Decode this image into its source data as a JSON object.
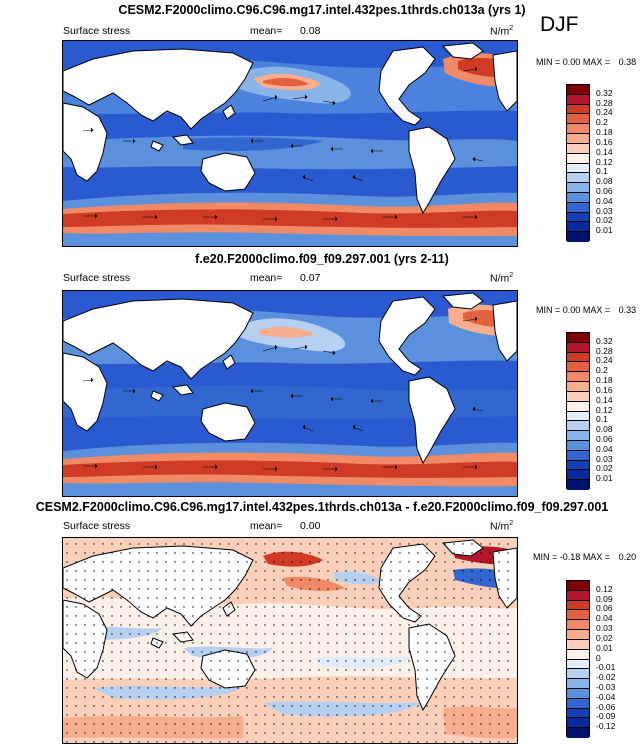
{
  "season": "DJF",
  "panels": [
    {
      "title": "CESM2.F2000climo.C96.C96.mg17.intel.432pes.1thrds.ch013a (yrs 1)",
      "left_label": "Surface stress",
      "mean_label": "mean=",
      "mean_value": "0.08",
      "units": "N/m",
      "units_exp": "2",
      "min_label": "MIN =",
      "min_value": "0.00",
      "max_label": "MAX =",
      "max_value": "0.38"
    },
    {
      "title": "f.e20.F2000climo.f09_f09.297.001 (yrs 2-11)",
      "left_label": "Surface stress",
      "mean_label": "mean=",
      "mean_value": "0.07",
      "units": "N/m",
      "units_exp": "2",
      "min_label": "MIN =",
      "min_value": "0.00",
      "max_label": "MAX =",
      "max_value": "0.33"
    },
    {
      "title": "CESM2.F2000climo.C96.C96.mg17.intel.432pes.1thrds.ch013a - f.e20.F2000climo.f09_f09.297.001",
      "left_label": "Surface stress",
      "mean_label": "mean=",
      "mean_value": "0.00",
      "units": "N/m",
      "units_exp": "2",
      "min_label": "MIN =",
      "min_value": "-0.18",
      "max_label": "MAX =",
      "max_value": "0.20"
    }
  ],
  "colorbars": {
    "abs": {
      "labels": [
        "0.32",
        "0.28",
        "0.24",
        "0.2",
        "0.18",
        "0.16",
        "0.14",
        "0.12",
        "0.1",
        "0.08",
        "0.06",
        "0.04",
        "0.03",
        "0.02",
        "0.01"
      ],
      "colors": [
        "#7f0000",
        "#b2182b",
        "#d03b25",
        "#e4613f",
        "#f08a66",
        "#f7ae8f",
        "#fbd0bb",
        "#fdf0e8",
        "#e1ecfa",
        "#b7d0f2",
        "#8ab3e8",
        "#5b90dc",
        "#3167cf",
        "#1440b8",
        "#082a9e",
        "#001370"
      ]
    },
    "diff": {
      "labels": [
        "0.12",
        "0.09",
        "0.06",
        "0.04",
        "0.03",
        "0.02",
        "0.01",
        "0",
        "-0.01",
        "-0.02",
        "-0.03",
        "-0.04",
        "-0.06",
        "-0.09",
        "-0.12"
      ],
      "colors": [
        "#7f0000",
        "#b2182b",
        "#d03b25",
        "#e4613f",
        "#f08a66",
        "#f7ae8f",
        "#fbd0bb",
        "#fdf0e8",
        "#e1ecfa",
        "#b7d0f2",
        "#8ab3e8",
        "#5b90dc",
        "#3167cf",
        "#1440b8",
        "#082a9e",
        "#001370"
      ]
    }
  },
  "chart_data": [
    {
      "type": "heatmap",
      "title": "CESM2.F2000climo.C96.C96.mg17.intel.432pes.1thrds.ch013a (yrs 1)",
      "variable": "Surface stress",
      "units": "N/m2",
      "season": "DJF",
      "mean": 0.08,
      "min": 0.0,
      "max": 0.38,
      "levels": [
        0.01,
        0.02,
        0.03,
        0.04,
        0.06,
        0.08,
        0.1,
        0.12,
        0.14,
        0.16,
        0.18,
        0.2,
        0.24,
        0.28,
        0.32
      ]
    },
    {
      "type": "heatmap",
      "title": "f.e20.F2000climo.f09_f09.297.001 (yrs 2-11)",
      "variable": "Surface stress",
      "units": "N/m2",
      "season": "DJF",
      "mean": 0.07,
      "min": 0.0,
      "max": 0.33,
      "levels": [
        0.01,
        0.02,
        0.03,
        0.04,
        0.06,
        0.08,
        0.1,
        0.12,
        0.14,
        0.16,
        0.18,
        0.2,
        0.24,
        0.28,
        0.32
      ]
    },
    {
      "type": "heatmap",
      "title": "CESM2.F2000climo.C96.C96.mg17.intel.432pes.1thrds.ch013a - f.e20.F2000climo.f09_f09.297.001",
      "variable": "Surface stress",
      "units": "N/m2",
      "season": "DJF",
      "mean": 0.0,
      "min": -0.18,
      "max": 0.2,
      "levels": [
        -0.12,
        -0.09,
        -0.06,
        -0.04,
        -0.03,
        -0.02,
        -0.01,
        0,
        0.01,
        0.02,
        0.03,
        0.04,
        0.06,
        0.09,
        0.12
      ]
    }
  ]
}
